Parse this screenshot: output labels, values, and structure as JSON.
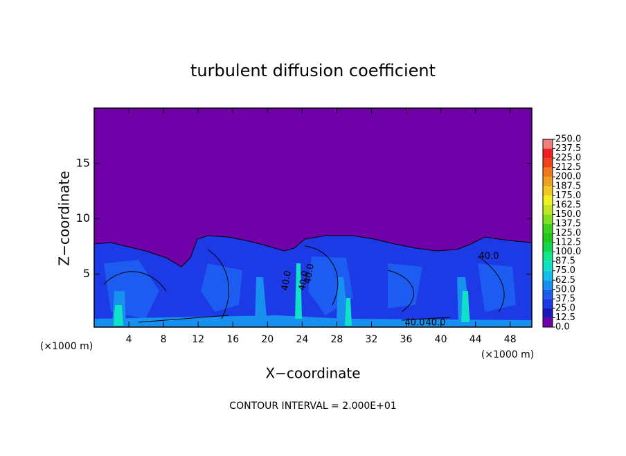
{
  "chart_data": {
    "type": "contour",
    "title": "turbulent diffusion coefficient",
    "x_label": "X−coordinate",
    "y_label": "Z−coordinate",
    "x_unit_left": "(×1000 m)",
    "x_unit_right": "(×1000 m)",
    "footer": "CONTOUR INTERVAL = 2.000E+01",
    "xlim": [
      0,
      50.5
    ],
    "ylim": [
      0.2,
      20
    ],
    "xticks": [
      4,
      8,
      12,
      16,
      20,
      24,
      28,
      32,
      36,
      40,
      44,
      48
    ],
    "yticks": [
      5,
      10,
      15
    ],
    "contour_labels": [
      "40.0",
      "40.0",
      "40.0",
      "40.0",
      "40.0",
      "40.0"
    ],
    "colorbar": {
      "ticks": [
        {
          "value": 0,
          "label": "0.0"
        },
        {
          "value": 12.5,
          "label": "12.5"
        },
        {
          "value": 25,
          "label": "25.0"
        },
        {
          "value": 37.5,
          "label": "37.5"
        },
        {
          "value": 50,
          "label": "50.0"
        },
        {
          "value": 62.5,
          "label": "62.5"
        },
        {
          "value": 75,
          "label": "75.0"
        },
        {
          "value": 87.5,
          "label": "87.5"
        },
        {
          "value": 100,
          "label": "100.0"
        },
        {
          "value": 112.5,
          "label": "112.5"
        },
        {
          "value": 125,
          "label": "125.0"
        },
        {
          "value": 137.5,
          "label": "137.5"
        },
        {
          "value": 150,
          "label": "150.0"
        },
        {
          "value": 162.5,
          "label": "162.5"
        },
        {
          "value": 175,
          "label": "175.0"
        },
        {
          "value": 187.5,
          "label": "187.5"
        },
        {
          "value": 200,
          "label": "200.0"
        },
        {
          "value": 212.5,
          "label": "212.5"
        },
        {
          "value": 225,
          "label": "225.0"
        },
        {
          "value": 237.5,
          "label": "237.5"
        },
        {
          "value": 250,
          "label": "250.0"
        }
      ],
      "colors": [
        "#7000a8",
        "#1a18b8",
        "#1c3ae6",
        "#1c5cf0",
        "#1890f0",
        "#10c0e8",
        "#10e0c8",
        "#10e890",
        "#10d850",
        "#20c820",
        "#40d020",
        "#80e020",
        "#c0e820",
        "#f0f020",
        "#f0c820",
        "#f0a020",
        "#f07820",
        "#f04020",
        "#f02020",
        "#f08080"
      ]
    }
  }
}
